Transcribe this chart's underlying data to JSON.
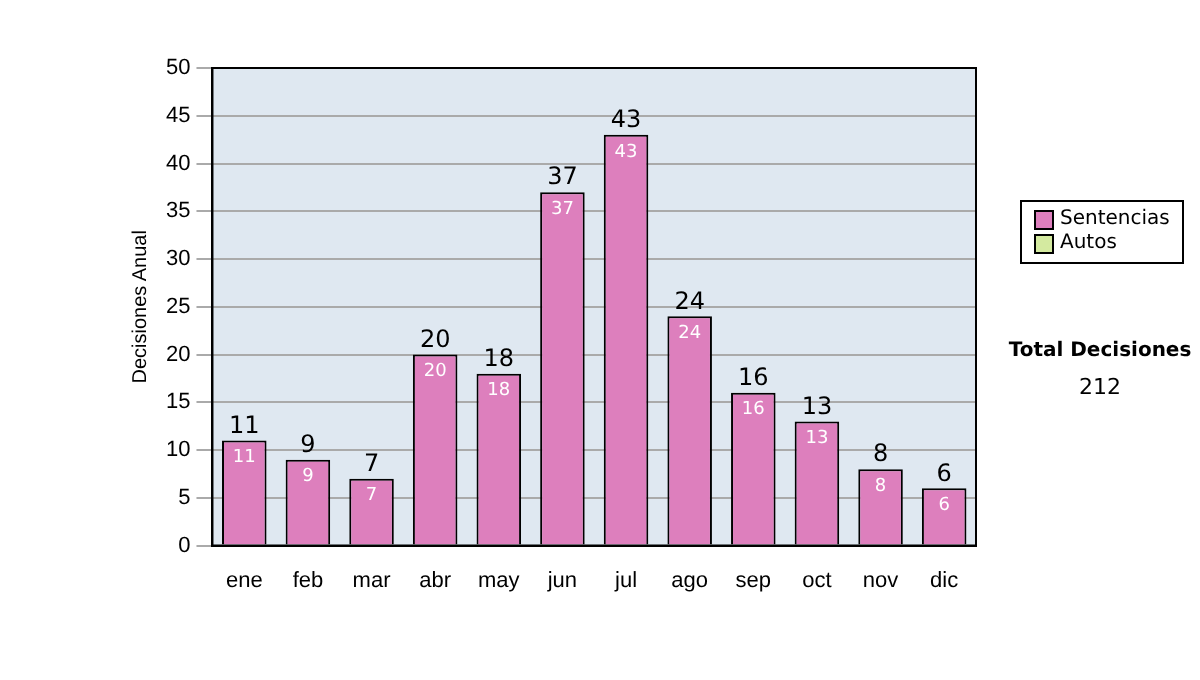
{
  "chart_data": {
    "type": "bar",
    "ylabel": "Decisiones Anual",
    "categories": [
      "ene",
      "feb",
      "mar",
      "abr",
      "may",
      "jun",
      "jul",
      "ago",
      "sep",
      "oct",
      "nov",
      "dic"
    ],
    "series": [
      {
        "name": "Sentencias",
        "color": "#dd7fbd",
        "values": [
          11,
          9,
          7,
          20,
          18,
          37,
          43,
          24,
          16,
          13,
          8,
          6
        ],
        "value_labels": [
          "11",
          "9",
          "7",
          "20",
          "18",
          "37",
          "43",
          "24",
          "16",
          "13",
          "8",
          "6"
        ]
      },
      {
        "name": "Autos",
        "color": "#d4eaa0",
        "values": [
          null,
          null,
          null,
          null,
          null,
          null,
          null,
          null,
          null,
          null,
          null,
          null
        ]
      }
    ],
    "ylim": [
      0,
      50
    ],
    "yticks": [
      0,
      5,
      10,
      15,
      20,
      25,
      30,
      35,
      40,
      45,
      50
    ],
    "grid": "y",
    "legend": "right",
    "annotations": [
      "Total Decisiones",
      "212",
      {
        "text": "11",
        "x": "ene",
        "y": 11
      },
      {
        "text": "9",
        "x": "feb",
        "y": 9
      },
      {
        "text": "7",
        "x": "mar",
        "y": 7
      },
      {
        "text": "20",
        "x": "abr",
        "y": 20
      },
      {
        "text": "18",
        "x": "may",
        "y": 18
      },
      {
        "text": "37",
        "x": "jun",
        "y": 37
      },
      {
        "text": "43",
        "x": "jul",
        "y": 43
      },
      {
        "text": "24",
        "x": "ago",
        "y": 24
      },
      {
        "text": "16",
        "x": "sep",
        "y": 16
      },
      {
        "text": "13",
        "x": "oct",
        "y": 13
      },
      {
        "text": "8",
        "x": "nov",
        "y": 8
      },
      {
        "text": "6",
        "x": "dic",
        "y": 6
      }
    ]
  }
}
